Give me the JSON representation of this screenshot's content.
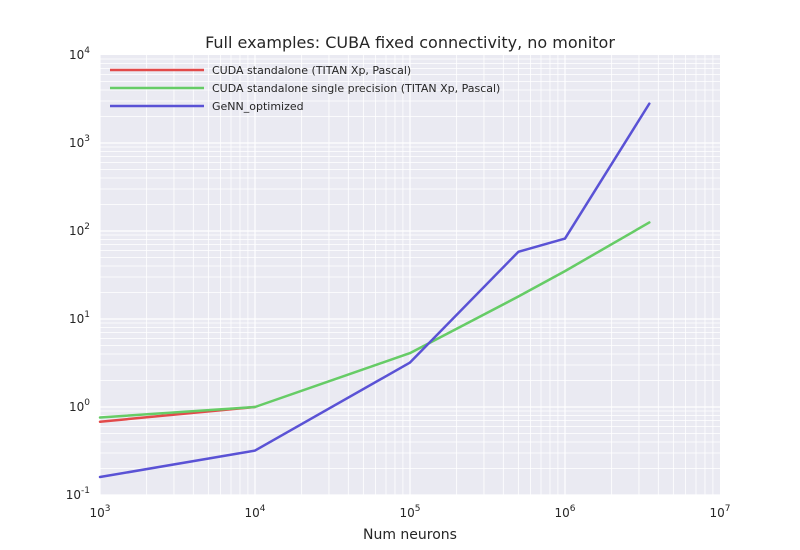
{
  "chart_data": {
    "type": "line",
    "title": "Full examples: CUBA fixed connectivity, no monitor",
    "xlabel": "Num neurons",
    "ylabel": "",
    "xscale": "log",
    "yscale": "log",
    "xlim": [
      1000,
      10000000
    ],
    "ylim": [
      0.1,
      10000
    ],
    "grid": true,
    "grid_minor": true,
    "legend_position": "top-left",
    "x_ticks": [
      {
        "base": "10",
        "exp": "3"
      },
      {
        "base": "10",
        "exp": "4"
      },
      {
        "base": "10",
        "exp": "5"
      },
      {
        "base": "10",
        "exp": "6"
      },
      {
        "base": "10",
        "exp": "7"
      }
    ],
    "y_ticks": [
      {
        "base": "10",
        "exp": "-1"
      },
      {
        "base": "10",
        "exp": "0"
      },
      {
        "base": "10",
        "exp": "1"
      },
      {
        "base": "10",
        "exp": "2"
      },
      {
        "base": "10",
        "exp": "3"
      },
      {
        "base": "10",
        "exp": "4"
      }
    ],
    "series": [
      {
        "name": "CUDA standalone (TITAN Xp, Pascal)",
        "color": "#e24a4a",
        "points": [
          [
            1000,
            0.68
          ],
          [
            10000,
            1.0
          ]
        ]
      },
      {
        "name": "CUDA standalone single precision (TITAN Xp, Pascal)",
        "color": "#66cc66",
        "points": [
          [
            1000,
            0.76
          ],
          [
            10000,
            1.0
          ],
          [
            100000,
            4.1
          ],
          [
            500000,
            18
          ],
          [
            1000000,
            35
          ],
          [
            3500000,
            125
          ]
        ]
      },
      {
        "name": "GeNN_optimized",
        "color": "#5a52d5",
        "points": [
          [
            1000,
            0.16
          ],
          [
            10000,
            0.32
          ],
          [
            100000,
            3.2
          ],
          [
            500000,
            58
          ],
          [
            1000000,
            82
          ],
          [
            3500000,
            2800
          ]
        ]
      }
    ]
  }
}
